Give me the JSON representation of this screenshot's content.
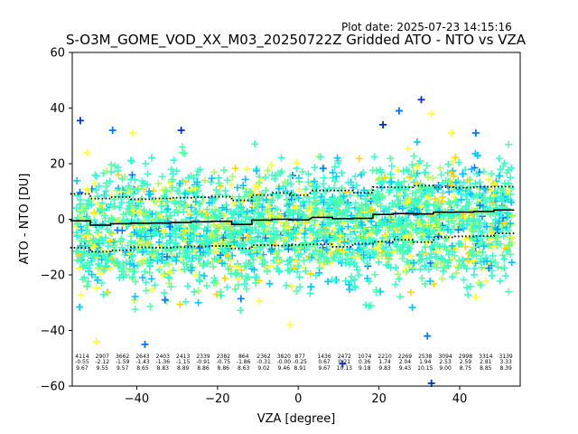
{
  "header": {
    "plot_date": "Plot date: 2025-07-23 14:15:16",
    "title": "S-O3M_GOME_VOD_XX_M03_20250722Z Gridded ATO - NTO vs VZA"
  },
  "chart_data": {
    "type": "scatter",
    "title": "S-O3M_GOME_VOD_XX_M03_20250722Z Gridded ATO - NTO vs VZA",
    "xlabel": "VZA [degree]",
    "ylabel": "ATO - NTO [DU]",
    "xlim": [
      -56,
      55
    ],
    "ylim": [
      -60,
      60
    ],
    "xticks": [
      -40,
      -20,
      0,
      20,
      40
    ],
    "xtick_labels": [
      "−40",
      "−20",
      "0",
      "20",
      "40"
    ],
    "yticks": [
      -60,
      -40,
      -20,
      0,
      20,
      40,
      60
    ],
    "ytick_labels": [
      "−60",
      "−40",
      "−20",
      "0",
      "20",
      "40",
      "60"
    ],
    "grid": false,
    "marker": "+",
    "point_colors": [
      "#0033cc",
      "#0077ff",
      "#00c8ff",
      "#33ffcc",
      "#55ffaa",
      "#aaff55",
      "#ffff33",
      "#ffd600"
    ],
    "scatter_envelope": {
      "x_range": [
        -55,
        53
      ],
      "upper_dense_DU": 22,
      "lower_dense_DU": -30,
      "outlier_max_DU": 43,
      "outlier_min_DU": -59
    },
    "bin_centers": [
      -54,
      -49,
      -44,
      -39,
      -34,
      -29,
      -24,
      -19,
      -14,
      -9,
      -4,
      0,
      6,
      11,
      16,
      21,
      26,
      31,
      36,
      41,
      46,
      51
    ],
    "bin_stats": {
      "count": [
        "4114",
        "2907",
        "3662",
        "2643",
        "2403",
        "2413",
        "2339",
        "2382",
        "864",
        "2362",
        "3820",
        "877",
        "1436",
        "2472",
        "1074",
        "2210",
        "2269",
        "2538",
        "3094",
        "2998",
        "3314",
        "3139"
      ],
      "mean": [
        "-0.55",
        "-2.12",
        "-1.59",
        "-1.43",
        "-1.36",
        "-1.15",
        "-0.91",
        "-0.75",
        "-1.86",
        "-0.31",
        "-0.00",
        "-0.25",
        "0.67",
        "0.21",
        "0.36",
        "1.74",
        "2.04",
        "1.94",
        "2.53",
        "2.59",
        "2.81",
        "3.33"
      ],
      "std": [
        "9.67",
        "9.55",
        "9.57",
        "8.65",
        "8.83",
        "8.89",
        "8.86",
        "8.86",
        "8.63",
        "9.02",
        "9.46",
        "8.91",
        "9.67",
        "10.13",
        "9.18",
        "9.83",
        "9.43",
        "10.15",
        "9.00",
        "8.75",
        "8.85",
        "8.39"
      ]
    },
    "series": [
      {
        "name": "",
        "style": "solid",
        "values": [
          -0.55,
          -2.12,
          -1.59,
          -1.43,
          -1.36,
          -1.15,
          -0.91,
          -0.75,
          -1.86,
          -0.31,
          -0.0,
          -0.25,
          0.67,
          0.21,
          0.36,
          1.74,
          2.04,
          1.94,
          2.53,
          2.59,
          2.81,
          3.33
        ]
      },
      {
        "name": "",
        "style": "dotted",
        "values": [
          9.12,
          7.43,
          7.98,
          7.22,
          7.47,
          7.74,
          7.95,
          8.11,
          6.77,
          8.71,
          9.46,
          8.66,
          10.34,
          10.34,
          9.54,
          11.57,
          11.47,
          12.09,
          11.53,
          11.34,
          11.66,
          11.72
        ]
      },
      {
        "name": "",
        "style": "dotted",
        "values": [
          -10.22,
          -11.67,
          -11.16,
          -10.08,
          -10.19,
          -10.04,
          -9.77,
          -9.61,
          -10.49,
          -9.33,
          -9.46,
          -9.16,
          -9.0,
          -9.92,
          -8.82,
          -8.09,
          -7.39,
          -8.21,
          -6.47,
          -6.16,
          -6.04,
          -5.06
        ]
      }
    ]
  }
}
